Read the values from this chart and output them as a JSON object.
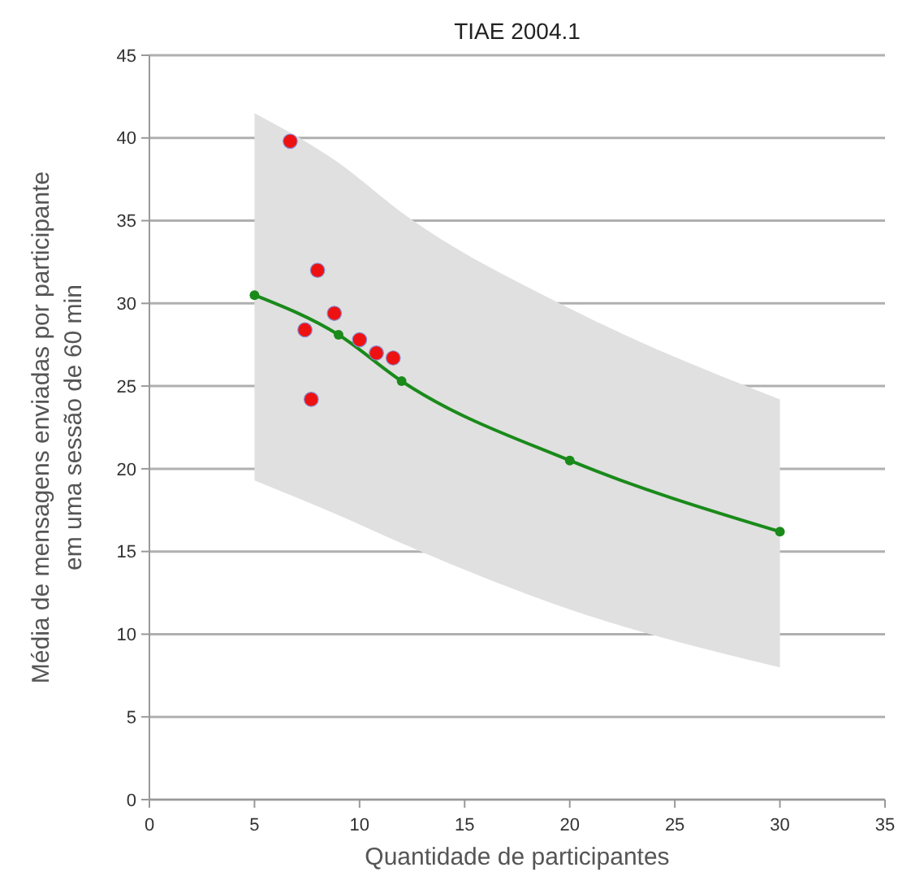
{
  "chart_data": {
    "type": "scatter",
    "title": "TIAE 2004.1",
    "xlabel": "Quantidade de participantes",
    "ylabel": "Média de mensagens enviadas por participante\nem uma sessão de 60 min",
    "xlim": [
      0,
      35
    ],
    "xticks": [
      0,
      5,
      10,
      15,
      20,
      25,
      30,
      35
    ],
    "ylim": [
      0,
      45
    ],
    "yticks": [
      0,
      5,
      10,
      15,
      20,
      25,
      30,
      35,
      40,
      45
    ],
    "grid": "y",
    "legend": false,
    "marker": "circle",
    "series": [
      {
        "type": "line",
        "color": "#1a8a1a",
        "x": [
          5,
          9,
          12,
          20,
          30
        ],
        "values": [
          30.5,
          28.1,
          25.3,
          20.5,
          16.2
        ],
        "lower": [
          19.3,
          17.2,
          15.5,
          11.5,
          8
        ],
        "upper": [
          41.5,
          38.5,
          35.5,
          29.7,
          24.2
        ]
      },
      {
        "type": "scatter",
        "color": "#ee1111",
        "x": [
          6.7,
          7.4,
          7.7,
          8,
          8.8,
          10,
          10.8,
          11.6
        ],
        "values": [
          39.8,
          28.4,
          24.2,
          32,
          29.4,
          27.8,
          27,
          26.7
        ]
      }
    ]
  }
}
